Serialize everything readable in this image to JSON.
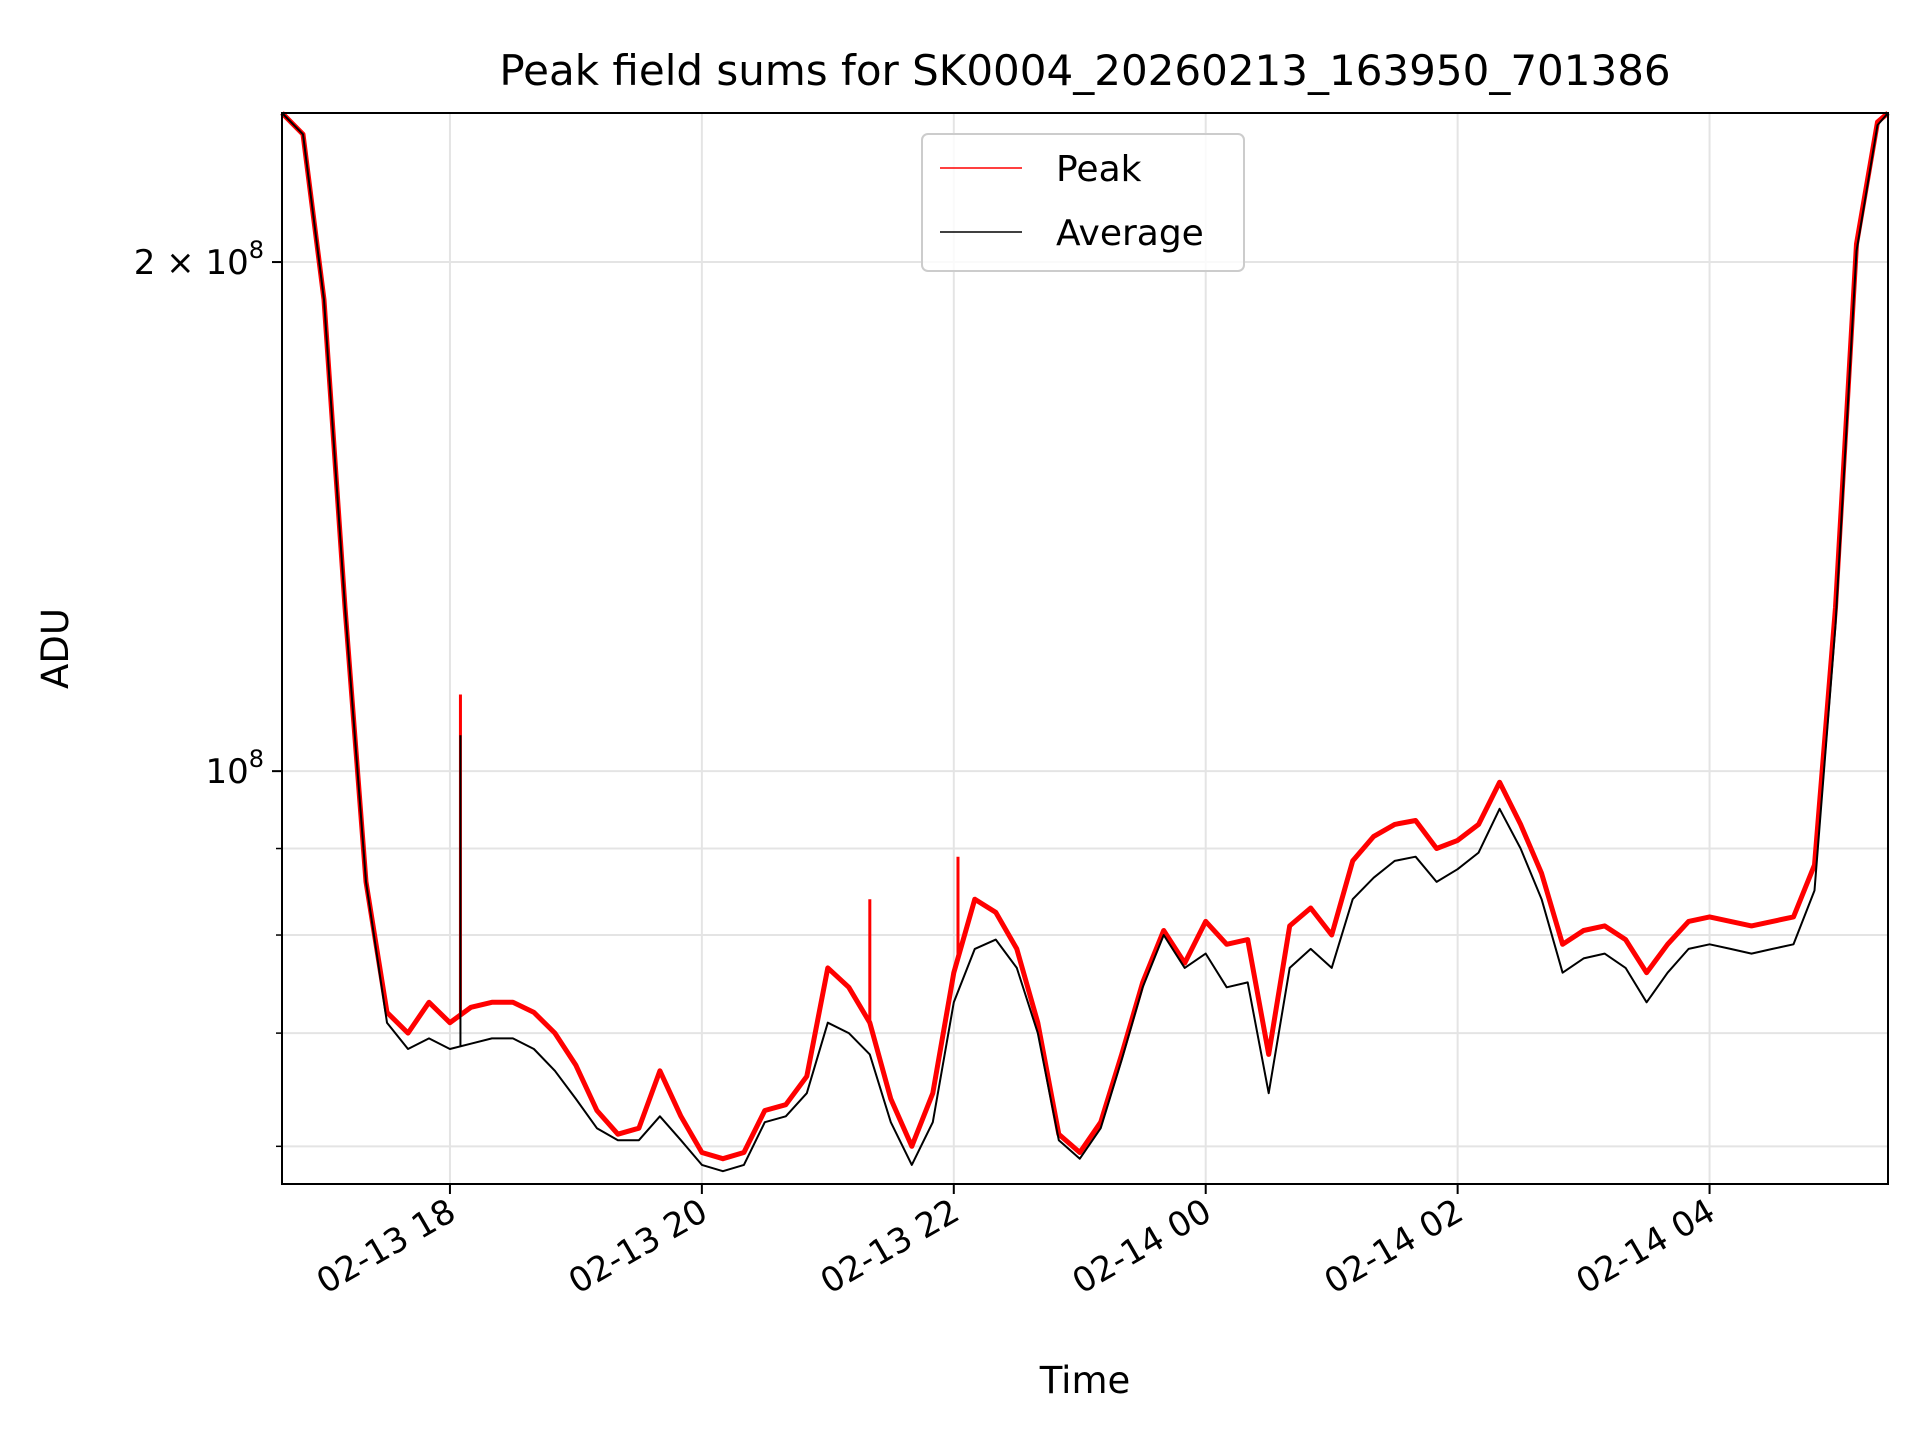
{
  "chart_data": {
    "type": "line",
    "title": "Peak field sums for SK0004_20260213_163950_701386",
    "xlabel": "Time",
    "ylabel": "ADU",
    "y_scale": "log",
    "x_range": [
      "2026-02-13 16:40",
      "2026-02-14 05:25"
    ],
    "ylim": [
      57000000,
      245000000
    ],
    "x_ticks": [
      {
        "t": "2026-02-13 18:00",
        "label": "02-13 18"
      },
      {
        "t": "2026-02-13 20:00",
        "label": "02-13 20"
      },
      {
        "t": "2026-02-13 22:00",
        "label": "02-13 22"
      },
      {
        "t": "2026-02-14 00:00",
        "label": "02-14 00"
      },
      {
        "t": "2026-02-14 02:00",
        "label": "02-14 02"
      },
      {
        "t": "2026-02-14 04:00",
        "label": "02-14 04"
      }
    ],
    "y_major_ticks": [
      {
        "value": 100000000,
        "base": "10",
        "exp": "8",
        "mantissa": ""
      },
      {
        "value": 200000000,
        "base": "10",
        "exp": "8",
        "mantissa": "2 × "
      }
    ],
    "y_minor_ticks": [
      60000000,
      70000000,
      80000000,
      90000000
    ],
    "grid": true,
    "legend": {
      "placement": "upper center"
    },
    "series": [
      {
        "name": "Peak",
        "color": "#ff0000",
        "points": [
          [
            "2026-02-13 16:40",
            245000000
          ],
          [
            "2026-02-13 16:50",
            238000000
          ],
          [
            "2026-02-13 17:00",
            190000000
          ],
          [
            "2026-02-13 17:10",
            125000000
          ],
          [
            "2026-02-13 17:20",
            86000000
          ],
          [
            "2026-02-13 17:30",
            72000000
          ],
          [
            "2026-02-13 17:40",
            70000000
          ],
          [
            "2026-02-13 17:50",
            73000000
          ],
          [
            "2026-02-13 18:00",
            71000000
          ],
          [
            "2026-02-13 18:10",
            72500000
          ],
          [
            "2026-02-13 18:20",
            73000000
          ],
          [
            "2026-02-13 18:30",
            73000000
          ],
          [
            "2026-02-13 18:40",
            72000000
          ],
          [
            "2026-02-13 18:50",
            70000000
          ],
          [
            "2026-02-13 19:00",
            67000000
          ],
          [
            "2026-02-13 19:10",
            63000000
          ],
          [
            "2026-02-13 19:20",
            61000000
          ],
          [
            "2026-02-13 19:30",
            61500000
          ],
          [
            "2026-02-13 19:40",
            66500000
          ],
          [
            "2026-02-13 19:50",
            62500000
          ],
          [
            "2026-02-13 20:00",
            59500000
          ],
          [
            "2026-02-13 20:10",
            59000000
          ],
          [
            "2026-02-13 20:20",
            59500000
          ],
          [
            "2026-02-13 20:30",
            63000000
          ],
          [
            "2026-02-13 20:40",
            63500000
          ],
          [
            "2026-02-13 20:50",
            66000000
          ],
          [
            "2026-02-13 21:00",
            76500000
          ],
          [
            "2026-02-13 21:10",
            74500000
          ],
          [
            "2026-02-13 21:20",
            71000000
          ],
          [
            "2026-02-13 21:30",
            64000000
          ],
          [
            "2026-02-13 21:40",
            60000000
          ],
          [
            "2026-02-13 21:50",
            64500000
          ],
          [
            "2026-02-13 22:00",
            76000000
          ],
          [
            "2026-02-13 22:10",
            84000000
          ],
          [
            "2026-02-13 22:20",
            82500000
          ],
          [
            "2026-02-13 22:30",
            78500000
          ],
          [
            "2026-02-13 22:40",
            71000000
          ],
          [
            "2026-02-13 22:50",
            61000000
          ],
          [
            "2026-02-13 23:00",
            59500000
          ],
          [
            "2026-02-13 23:10",
            62000000
          ],
          [
            "2026-02-13 23:20",
            68000000
          ],
          [
            "2026-02-13 23:30",
            75000000
          ],
          [
            "2026-02-13 23:40",
            80500000
          ],
          [
            "2026-02-13 23:50",
            77000000
          ],
          [
            "2026-02-14 00:00",
            81500000
          ],
          [
            "2026-02-14 00:10",
            79000000
          ],
          [
            "2026-02-14 00:20",
            79500000
          ],
          [
            "2026-02-14 00:30",
            68000000
          ],
          [
            "2026-02-14 00:40",
            81000000
          ],
          [
            "2026-02-14 00:50",
            83000000
          ],
          [
            "2026-02-14 01:00",
            80000000
          ],
          [
            "2026-02-14 01:10",
            88500000
          ],
          [
            "2026-02-14 01:20",
            91500000
          ],
          [
            "2026-02-14 01:30",
            93000000
          ],
          [
            "2026-02-14 01:40",
            93500000
          ],
          [
            "2026-02-14 01:50",
            90000000
          ],
          [
            "2026-02-14 02:00",
            91000000
          ],
          [
            "2026-02-14 02:10",
            93000000
          ],
          [
            "2026-02-14 02:20",
            98500000
          ],
          [
            "2026-02-14 02:30",
            93000000
          ],
          [
            "2026-02-14 02:40",
            87000000
          ],
          [
            "2026-02-14 02:50",
            79000000
          ],
          [
            "2026-02-14 03:00",
            80500000
          ],
          [
            "2026-02-14 03:10",
            81000000
          ],
          [
            "2026-02-14 03:20",
            79500000
          ],
          [
            "2026-02-14 03:30",
            76000000
          ],
          [
            "2026-02-14 03:40",
            79000000
          ],
          [
            "2026-02-14 03:50",
            81500000
          ],
          [
            "2026-02-14 04:00",
            82000000
          ],
          [
            "2026-02-14 04:10",
            81500000
          ],
          [
            "2026-02-14 04:20",
            81000000
          ],
          [
            "2026-02-14 04:30",
            81500000
          ],
          [
            "2026-02-14 04:40",
            82000000
          ],
          [
            "2026-02-14 04:50",
            88000000
          ],
          [
            "2026-02-14 05:00",
            125000000
          ],
          [
            "2026-02-14 05:10",
            205000000
          ],
          [
            "2026-02-14 05:20",
            242000000
          ],
          [
            "2026-02-14 05:25",
            245000000
          ]
        ]
      },
      {
        "name": "Average",
        "color": "#000000",
        "points": [
          [
            "2026-02-13 16:40",
            245000000
          ],
          [
            "2026-02-13 16:50",
            238000000
          ],
          [
            "2026-02-13 17:00",
            190000000
          ],
          [
            "2026-02-13 17:10",
            125000000
          ],
          [
            "2026-02-13 17:20",
            86000000
          ],
          [
            "2026-02-13 17:30",
            71000000
          ],
          [
            "2026-02-13 17:40",
            68500000
          ],
          [
            "2026-02-13 17:50",
            69500000
          ],
          [
            "2026-02-13 18:00",
            68500000
          ],
          [
            "2026-02-13 18:10",
            69000000
          ],
          [
            "2026-02-13 18:20",
            69500000
          ],
          [
            "2026-02-13 18:30",
            69500000
          ],
          [
            "2026-02-13 18:40",
            68500000
          ],
          [
            "2026-02-13 18:50",
            66500000
          ],
          [
            "2026-02-13 19:00",
            64000000
          ],
          [
            "2026-02-13 19:10",
            61500000
          ],
          [
            "2026-02-13 19:20",
            60500000
          ],
          [
            "2026-02-13 19:30",
            60500000
          ],
          [
            "2026-02-13 19:40",
            62500000
          ],
          [
            "2026-02-13 19:50",
            60500000
          ],
          [
            "2026-02-13 20:00",
            58500000
          ],
          [
            "2026-02-13 20:10",
            58000000
          ],
          [
            "2026-02-13 20:20",
            58500000
          ],
          [
            "2026-02-13 20:30",
            62000000
          ],
          [
            "2026-02-13 20:40",
            62500000
          ],
          [
            "2026-02-13 20:50",
            64500000
          ],
          [
            "2026-02-13 21:00",
            71000000
          ],
          [
            "2026-02-13 21:10",
            70000000
          ],
          [
            "2026-02-13 21:20",
            68000000
          ],
          [
            "2026-02-13 21:30",
            62000000
          ],
          [
            "2026-02-13 21:40",
            58500000
          ],
          [
            "2026-02-13 21:50",
            62000000
          ],
          [
            "2026-02-13 22:00",
            73000000
          ],
          [
            "2026-02-13 22:10",
            78500000
          ],
          [
            "2026-02-13 22:20",
            79500000
          ],
          [
            "2026-02-13 22:30",
            76500000
          ],
          [
            "2026-02-13 22:40",
            70000000
          ],
          [
            "2026-02-13 22:50",
            60500000
          ],
          [
            "2026-02-13 23:00",
            59000000
          ],
          [
            "2026-02-13 23:10",
            61500000
          ],
          [
            "2026-02-13 23:20",
            67500000
          ],
          [
            "2026-02-13 23:30",
            74500000
          ],
          [
            "2026-02-13 23:40",
            80000000
          ],
          [
            "2026-02-13 23:50",
            76500000
          ],
          [
            "2026-02-14 00:00",
            78000000
          ],
          [
            "2026-02-14 00:10",
            74500000
          ],
          [
            "2026-02-14 00:20",
            75000000
          ],
          [
            "2026-02-14 00:30",
            64500000
          ],
          [
            "2026-02-14 00:40",
            76500000
          ],
          [
            "2026-02-14 00:50",
            78500000
          ],
          [
            "2026-02-14 01:00",
            76500000
          ],
          [
            "2026-02-14 01:10",
            84000000
          ],
          [
            "2026-02-14 01:20",
            86500000
          ],
          [
            "2026-02-14 01:30",
            88500000
          ],
          [
            "2026-02-14 01:40",
            89000000
          ],
          [
            "2026-02-14 01:50",
            86000000
          ],
          [
            "2026-02-14 02:00",
            87500000
          ],
          [
            "2026-02-14 02:10",
            89500000
          ],
          [
            "2026-02-14 02:20",
            95000000
          ],
          [
            "2026-02-14 02:30",
            90000000
          ],
          [
            "2026-02-14 02:40",
            84000000
          ],
          [
            "2026-02-14 02:50",
            76000000
          ],
          [
            "2026-02-14 03:00",
            77500000
          ],
          [
            "2026-02-14 03:10",
            78000000
          ],
          [
            "2026-02-14 03:20",
            76500000
          ],
          [
            "2026-02-14 03:30",
            73000000
          ],
          [
            "2026-02-14 03:40",
            76000000
          ],
          [
            "2026-02-14 03:50",
            78500000
          ],
          [
            "2026-02-14 04:00",
            79000000
          ],
          [
            "2026-02-14 04:10",
            78500000
          ],
          [
            "2026-02-14 04:20",
            78000000
          ],
          [
            "2026-02-14 04:30",
            78500000
          ],
          [
            "2026-02-14 04:40",
            79000000
          ],
          [
            "2026-02-14 04:50",
            85000000
          ],
          [
            "2026-02-14 05:00",
            122000000
          ],
          [
            "2026-02-14 05:10",
            203000000
          ],
          [
            "2026-02-14 05:20",
            241000000
          ],
          [
            "2026-02-14 05:25",
            245000000
          ]
        ]
      }
    ],
    "annotations": [
      {
        "note": "narrow spike",
        "t": "2026-02-13 18:05",
        "series": "Peak",
        "value": 111000000
      },
      {
        "note": "narrow spike",
        "t": "2026-02-13 18:05",
        "series": "Average",
        "value": 105000000
      },
      {
        "note": "narrow spike",
        "t": "2026-02-13 21:20",
        "series": "Peak",
        "value": 84000000
      },
      {
        "note": "narrow spike",
        "t": "2026-02-13 22:02",
        "series": "Peak",
        "value": 89000000
      }
    ]
  }
}
